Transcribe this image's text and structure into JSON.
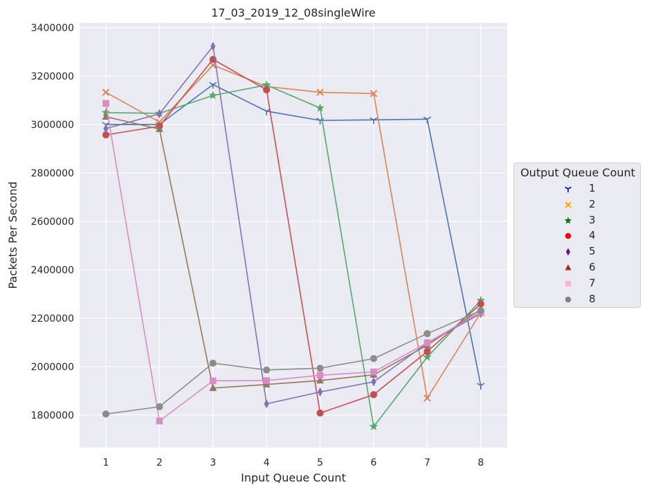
{
  "chart_data": {
    "type": "line",
    "title": "17_03_2019_12_08singleWire",
    "xlabel": "Input Queue Count",
    "ylabel": "Packets Per Second",
    "x": [
      1,
      2,
      3,
      4,
      5,
      6,
      7,
      8
    ],
    "xticks": [
      "1",
      "2",
      "3",
      "4",
      "5",
      "6",
      "7",
      "8"
    ],
    "yticks": [
      "1800000",
      "2000000",
      "2200000",
      "2400000",
      "2600000",
      "2800000",
      "3000000",
      "3200000",
      "3400000"
    ],
    "ylim": [
      1665000,
      3420000
    ],
    "grid": true,
    "legend_title": "Output Queue Count",
    "legend_position": "right",
    "series": [
      {
        "name": "1",
        "marker": "tri_down",
        "color": "#4c72b0",
        "legend_color": "#0000cc",
        "values": [
          3000000,
          3000000,
          3165000,
          3055000,
          3017000,
          3019000,
          3022000,
          1922000
        ]
      },
      {
        "name": "2",
        "marker": "x",
        "color": "#dd8452",
        "legend_color": "#ffa500",
        "values": [
          3133000,
          3010000,
          3245000,
          3157000,
          3133000,
          3128000,
          1870000,
          2222000
        ]
      },
      {
        "name": "3",
        "marker": "star",
        "color": "#55a868",
        "legend_color": "#007a00",
        "values": [
          3049000,
          3046000,
          3120000,
          3163000,
          3068000,
          1752000,
          2039000,
          2273000
        ]
      },
      {
        "name": "4",
        "marker": "circle",
        "color": "#c44e52",
        "legend_color": "#ff0000",
        "values": [
          2957000,
          2993000,
          3269000,
          3143000,
          1808000,
          1884000,
          2062000,
          2259000
        ]
      },
      {
        "name": "5",
        "marker": "thin_diamond",
        "color": "#8172b3",
        "legend_color": "#800080",
        "values": [
          2983000,
          3044000,
          3323000,
          1846000,
          1895000,
          1937000,
          2097000,
          2219000
        ]
      },
      {
        "name": "6",
        "marker": "triangle_up",
        "color": "#937860",
        "legend_color": "#a52a2a",
        "values": [
          3032000,
          2981000,
          1911000,
          1926000,
          1942000,
          1966000,
          2088000,
          2236000
        ]
      },
      {
        "name": "7",
        "marker": "square",
        "color": "#da8bc3",
        "legend_color": "#ffb6c1",
        "values": [
          3087000,
          1775000,
          1941000,
          1942000,
          1964000,
          1978000,
          2098000,
          2225000
        ]
      },
      {
        "name": "8",
        "marker": "circle",
        "color": "#8c8c8c",
        "legend_color": "#808080",
        "values": [
          1804000,
          1834000,
          2014000,
          1986000,
          1993000,
          2033000,
          2136000,
          2231000
        ]
      }
    ]
  }
}
